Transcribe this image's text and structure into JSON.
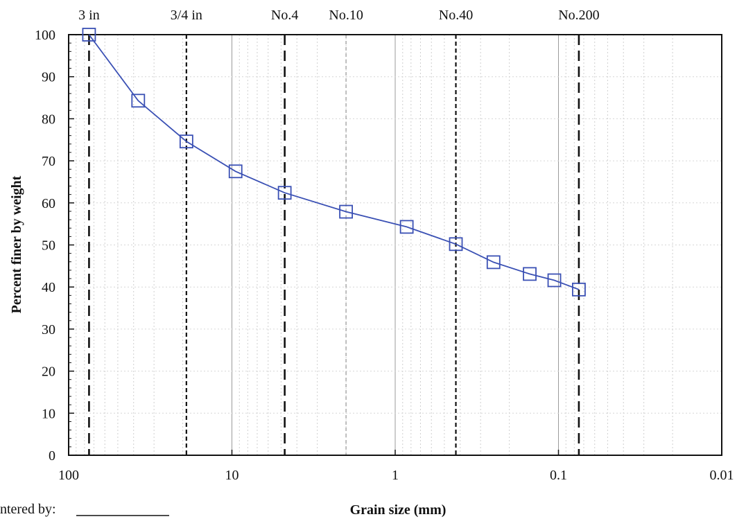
{
  "chart_data": {
    "type": "line",
    "title": "",
    "xlabel": "Grain size (mm)",
    "ylabel": "Percent finer by weight",
    "x_scale": "log",
    "x_reversed": true,
    "xlim": [
      100,
      0.01
    ],
    "ylim": [
      0,
      100
    ],
    "x_tick_values": [
      100,
      10,
      1,
      0.1,
      0.01
    ],
    "x_tick_labels": [
      "100",
      "10",
      "1",
      "0.1",
      "0.01"
    ],
    "y_tick_values": [
      0,
      10,
      20,
      30,
      40,
      50,
      60,
      70,
      80,
      90,
      100
    ],
    "y_tick_labels": [
      "0",
      "10",
      "20",
      "30",
      "40",
      "50",
      "60",
      "70",
      "80",
      "90",
      "100"
    ],
    "grid": true,
    "series": [
      {
        "color": "#3a50b4",
        "marker": "square",
        "points": [
          {
            "x": 75,
            "y": 100
          },
          {
            "x": 37.5,
            "y": 84.3
          },
          {
            "x": 19.0,
            "y": 74.6
          },
          {
            "x": 9.5,
            "y": 67.5
          },
          {
            "x": 4.75,
            "y": 62.4
          },
          {
            "x": 2.0,
            "y": 57.9
          },
          {
            "x": 0.85,
            "y": 54.3
          },
          {
            "x": 0.425,
            "y": 50.2
          },
          {
            "x": 0.25,
            "y": 45.9
          },
          {
            "x": 0.15,
            "y": 43.1
          },
          {
            "x": 0.106,
            "y": 41.6
          },
          {
            "x": 0.075,
            "y": 39.4
          }
        ]
      }
    ],
    "sieve_lines": [
      {
        "label": "3 in",
        "x": 75,
        "style": "long-dash"
      },
      {
        "label": "3/4 in",
        "x": 19.0,
        "style": "short-dash"
      },
      {
        "label": "No.4",
        "x": 4.75,
        "style": "long-dash"
      },
      {
        "label": "No.10",
        "x": 2.0,
        "style": "light-dash"
      },
      {
        "label": "No.40",
        "x": 0.425,
        "style": "short-dash"
      },
      {
        "label": "No.200",
        "x": 0.075,
        "style": "long-dash"
      }
    ]
  },
  "footer": {
    "entered_by_label": "ntered by:"
  }
}
